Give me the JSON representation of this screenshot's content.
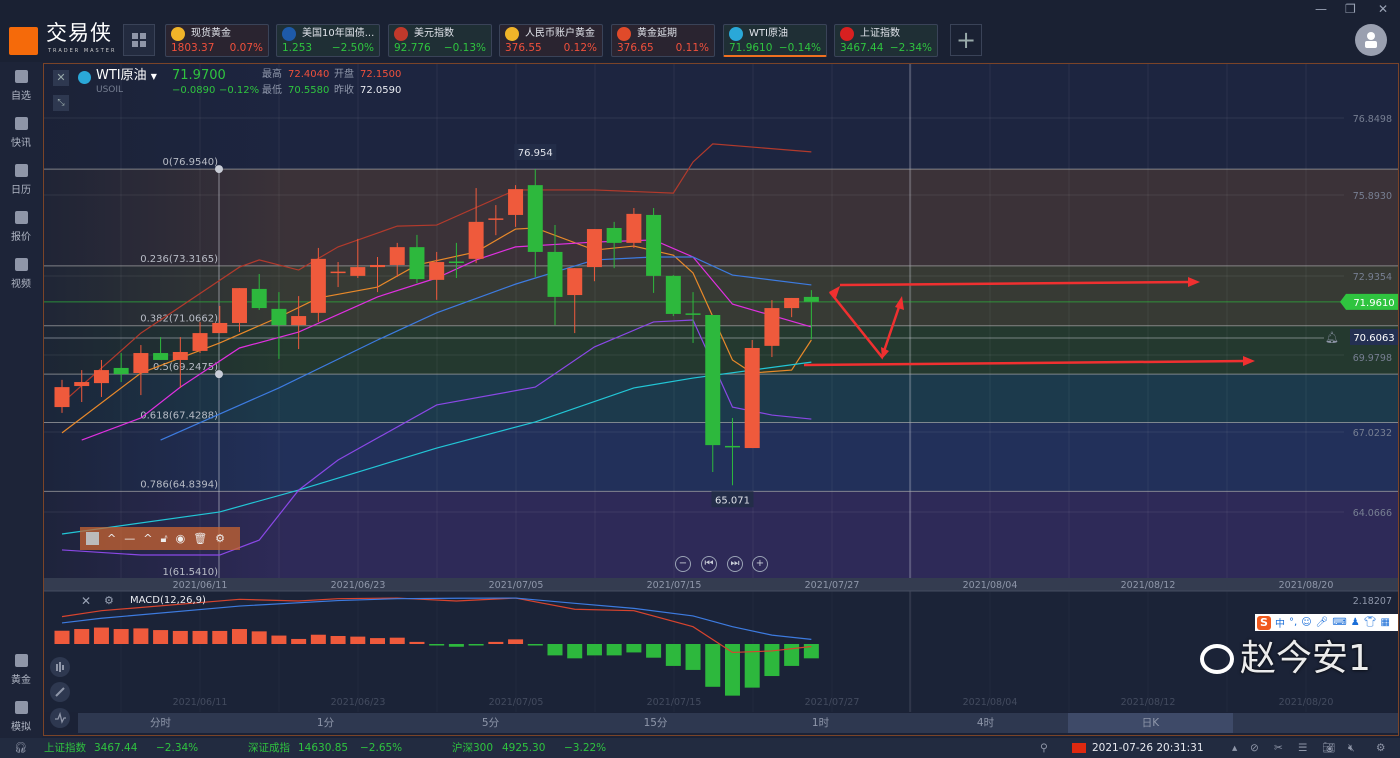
{
  "app": {
    "name": "交易侠",
    "subtitle": "TRADER MASTER"
  },
  "window_controls": [
    "minimize",
    "restore",
    "close"
  ],
  "tickers": [
    {
      "name": "现货黄金",
      "price": "1803.37",
      "change": "0.07%",
      "dir": "up",
      "icon": "gold-icon",
      "icon_color": "#f0b429"
    },
    {
      "name": "美国10年国债...",
      "price": "1.253",
      "change": "−2.50%",
      "dir": "dn",
      "icon": "bar-chart-icon",
      "icon_color": "#1e5aa8"
    },
    {
      "name": "美元指数",
      "price": "92.776",
      "change": "−0.13%",
      "dir": "dn",
      "icon": "us-flag-icon",
      "icon_color": "#c0392b"
    },
    {
      "name": "人民币账户黄金",
      "price": "376.55",
      "change": "0.12%",
      "dir": "up",
      "icon": "gold-icon",
      "icon_color": "#f0b429"
    },
    {
      "name": "黄金延期",
      "price": "376.65",
      "change": "0.11%",
      "dir": "up",
      "icon": "gold-td-icon",
      "icon_color": "#e04a2a"
    },
    {
      "name": "WTI原油",
      "price": "71.9610",
      "change": "−0.14%",
      "dir": "dn",
      "icon": "oil-icon",
      "icon_color": "#2aa8d8",
      "active": true
    },
    {
      "name": "上证指数",
      "price": "3467.44",
      "change": "−2.34%",
      "dir": "dn",
      "icon": "sse-icon",
      "icon_color": "#d82020"
    }
  ],
  "sidebar": {
    "items": [
      {
        "label": "自选",
        "icon": "bookmark-icon"
      },
      {
        "label": "快讯",
        "icon": "news-icon"
      },
      {
        "label": "日历",
        "icon": "calendar-icon"
      },
      {
        "label": "报价",
        "icon": "quote-icon"
      },
      {
        "label": "视频",
        "icon": "video-icon"
      }
    ],
    "bottom": [
      {
        "label": "黄金",
        "icon": "gold-bar-icon"
      },
      {
        "label": "模拟",
        "icon": "wallet-icon"
      }
    ]
  },
  "symbol": {
    "name": "WTI原油",
    "code": "USOIL",
    "price": "71.9700",
    "change": "−0.0890",
    "change_pct": "−0.12%",
    "high_label": "最高",
    "high": "72.4040",
    "open_label": "开盘",
    "open": "72.1500",
    "low_label": "最低",
    "low": "70.5580",
    "prev_label": "昨收",
    "prev": "72.0590"
  },
  "chart_data": {
    "type": "candlestick",
    "up_color": "#ef5a3c",
    "down_color": "#2db83d",
    "y_ticks": [
      "76.8498",
      "75.8930",
      "72.9354",
      "69.9798",
      "67.0232",
      "64.0666"
    ],
    "current_price": "71.9610",
    "alert_price": "70.6063",
    "x_ticks": [
      "2021/06/11",
      "2021/06/23",
      "2021/07/05",
      "2021/07/15",
      "2021/07/27",
      "2021/08/04",
      "2021/08/12",
      "2021/08/20"
    ],
    "high_marker": "76.954",
    "low_marker": "65.071",
    "fib_levels": [
      {
        "label": "0(76.9540)",
        "value": 76.954
      },
      {
        "label": "0.236(73.3165)",
        "value": 73.3165
      },
      {
        "label": "0.382(71.0662)",
        "value": 71.0662
      },
      {
        "label": "0.5(69.2475)",
        "value": 69.2475
      },
      {
        "label": "0.618(67.4288)",
        "value": 67.4288
      },
      {
        "label": "0.786(64.8394)",
        "value": 64.8394
      },
      {
        "label": "1(61.5410)",
        "value": 61.541
      }
    ],
    "candles": [
      [
        "2021/06/02",
        68.01,
        69.03,
        67.79,
        68.76
      ],
      [
        "2021/06/03",
        68.8,
        69.4,
        68.2,
        68.95
      ],
      [
        "2021/06/04",
        68.91,
        69.78,
        68.39,
        69.4
      ],
      [
        "2021/06/07",
        69.48,
        70.04,
        68.95,
        69.25
      ],
      [
        "2021/06/08",
        69.29,
        70.34,
        68.46,
        70.04
      ],
      [
        "2021/06/09",
        70.04,
        70.64,
        69.78,
        69.78
      ],
      [
        "2021/06/10",
        69.78,
        70.64,
        68.73,
        70.08
      ],
      [
        "2021/06/11",
        70.12,
        71.21,
        70.04,
        70.79
      ],
      [
        "2021/06/14",
        70.79,
        71.81,
        70.79,
        71.17
      ],
      [
        "2021/06/15",
        71.17,
        72.48,
        70.83,
        72.48
      ],
      [
        "2021/06/16",
        72.45,
        73.01,
        71.66,
        71.73
      ],
      [
        "2021/06/17",
        71.7,
        72.33,
        69.82,
        71.09
      ],
      [
        "2021/06/18",
        71.09,
        72.18,
        70.19,
        71.43
      ],
      [
        "2021/06/21",
        71.55,
        73.99,
        71.21,
        73.58
      ],
      [
        "2021/06/22",
        73.08,
        73.46,
        72.52,
        73.1
      ],
      [
        "2021/06/23",
        72.94,
        74.33,
        72.86,
        73.27
      ],
      [
        "2021/06/24",
        73.27,
        73.65,
        72.33,
        73.35
      ],
      [
        "2021/06/25",
        73.35,
        74.18,
        72.9,
        74.02
      ],
      [
        "2021/06/28",
        74.02,
        74.48,
        72.67,
        72.82
      ],
      [
        "2021/06/29",
        72.79,
        73.84,
        72.04,
        73.46
      ],
      [
        "2021/06/30",
        73.48,
        74.18,
        72.86,
        73.44
      ],
      [
        "2021/07/01",
        73.58,
        76.24,
        73.42,
        74.97
      ],
      [
        "2021/07/02",
        75.05,
        75.6,
        74.47,
        75.1
      ],
      [
        "2021/07/05",
        75.23,
        76.35,
        74.78,
        76.2
      ],
      [
        "2021/07/06",
        76.35,
        76.954,
        72.9,
        73.84
      ],
      [
        "2021/07/07",
        73.84,
        74.85,
        71.09,
        72.15
      ],
      [
        "2021/07/08",
        72.22,
        73.23,
        70.79,
        73.23
      ],
      [
        "2021/07/09",
        73.27,
        74.7,
        72.74,
        74.7
      ],
      [
        "2021/07/12",
        74.74,
        74.97,
        73.23,
        74.18
      ],
      [
        "2021/07/13",
        74.18,
        75.49,
        73.99,
        75.27
      ],
      [
        "2021/07/14",
        75.23,
        75.49,
        72.3,
        72.94
      ],
      [
        "2021/07/15",
        72.94,
        72.97,
        71.43,
        71.51
      ],
      [
        "2021/07/16",
        71.53,
        72.33,
        70.42,
        71.51
      ],
      [
        "2021/07/19",
        71.47,
        71.47,
        65.57,
        66.58
      ],
      [
        "2021/07/20",
        66.55,
        67.6,
        65.071,
        66.52
      ],
      [
        "2021/07/21",
        66.47,
        70.53,
        66.47,
        70.23
      ],
      [
        "2021/07/22",
        70.31,
        72.03,
        69.89,
        71.73
      ],
      [
        "2021/07/23",
        71.73,
        72.11,
        71.39,
        72.11
      ],
      [
        "2021/07/26",
        72.15,
        72.404,
        70.558,
        71.97
      ]
    ],
    "overlays": [
      {
        "color": "#b23a2c",
        "points": [
          [
            "2021/06/02",
            68.16
          ],
          [
            "2021/06/08",
            70.79
          ],
          [
            "2021/06/15",
            73.27
          ],
          [
            "2021/06/16",
            73.54
          ],
          [
            "2021/06/18",
            73.16
          ],
          [
            "2021/06/22",
            74.03
          ],
          [
            "2021/06/25",
            74.81
          ],
          [
            "2021/06/29",
            74.85
          ],
          [
            "2021/07/05",
            76.17
          ],
          [
            "2021/07/09",
            76.17
          ],
          [
            "2021/07/15",
            76.05
          ],
          [
            "2021/07/16",
            77.22
          ],
          [
            "2021/07/19",
            77.9
          ],
          [
            "2021/07/26",
            77.6
          ]
        ]
      },
      {
        "color": "#e8892a",
        "points": [
          [
            "2021/06/02",
            67.04
          ],
          [
            "2021/06/08",
            69.29
          ],
          [
            "2021/06/14",
            70.42
          ],
          [
            "2021/06/17",
            71.39
          ],
          [
            "2021/06/21",
            72.11
          ],
          [
            "2021/06/24",
            72.52
          ],
          [
            "2021/06/28",
            73.35
          ],
          [
            "2021/07/01",
            73.84
          ],
          [
            "2021/07/05",
            74.7
          ],
          [
            "2021/07/06",
            74.74
          ],
          [
            "2021/07/09",
            73.91
          ],
          [
            "2021/07/13",
            74.06
          ],
          [
            "2021/07/15",
            73.72
          ],
          [
            "2021/07/16",
            73.05
          ],
          [
            "2021/07/20",
            69.78
          ],
          [
            "2021/07/21",
            69.29
          ],
          [
            "2021/07/23",
            69.4
          ],
          [
            "2021/07/26",
            70.53
          ]
        ]
      },
      {
        "color": "#e030e0",
        "points": [
          [
            "2021/06/03",
            66.77
          ],
          [
            "2021/06/08",
            67.6
          ],
          [
            "2021/06/10",
            68.76
          ],
          [
            "2021/06/15",
            70.23
          ],
          [
            "2021/06/18",
            70.83
          ],
          [
            "2021/06/24",
            72.15
          ],
          [
            "2021/06/29",
            72.86
          ],
          [
            "2021/07/01",
            73.54
          ],
          [
            "2021/07/05",
            74.03
          ],
          [
            "2021/07/09",
            74.21
          ],
          [
            "2021/07/14",
            74.29
          ],
          [
            "2021/07/16",
            73.65
          ],
          [
            "2021/07/20",
            71.88
          ],
          [
            "2021/07/26",
            71.02
          ]
        ]
      },
      {
        "color": "#3d7be0",
        "points": [
          [
            "2021/06/09",
            66.77
          ],
          [
            "2021/06/17",
            68.73
          ],
          [
            "2021/06/24",
            70.53
          ],
          [
            "2021/06/29",
            71.55
          ],
          [
            "2021/07/05",
            72.63
          ],
          [
            "2021/07/09",
            73.54
          ],
          [
            "2021/07/14",
            73.65
          ],
          [
            "2021/07/16",
            73.65
          ],
          [
            "2021/07/20",
            72.97
          ],
          [
            "2021/07/26",
            72.6
          ]
        ]
      },
      {
        "color": "#22c6d6",
        "points": [
          [
            "2021/06/02",
            63.24
          ],
          [
            "2021/06/14",
            64.07
          ],
          [
            "2021/06/18",
            64.89
          ],
          [
            "2021/06/29",
            66.47
          ],
          [
            "2021/07/06",
            67.45
          ],
          [
            "2021/07/13",
            68.73
          ],
          [
            "2021/07/16",
            69.1
          ],
          [
            "2021/07/26",
            69.7
          ]
        ]
      },
      {
        "color": "#8a48e6",
        "points": [
          [
            "2021/06/02",
            62.64
          ],
          [
            "2021/06/08",
            62.45
          ],
          [
            "2021/06/14",
            62.45
          ],
          [
            "2021/06/16",
            63.01
          ],
          [
            "2021/06/18",
            64.89
          ],
          [
            "2021/06/22",
            66.02
          ],
          [
            "2021/06/29",
            68.09
          ],
          [
            "2021/07/06",
            68.76
          ],
          [
            "2021/07/09",
            70.27
          ],
          [
            "2021/07/14",
            71.21
          ],
          [
            "2021/07/16",
            71.28
          ],
          [
            "2021/07/20",
            68.01
          ],
          [
            "2021/07/22",
            67.71
          ],
          [
            "2021/07/26",
            67.56
          ]
        ]
      }
    ],
    "macd": {
      "label": "MACD(12,26,9)",
      "axis_label": "2.18207",
      "histogram": [
        0.63,
        0.71,
        0.78,
        0.71,
        0.74,
        0.66,
        0.62,
        0.62,
        0.62,
        0.71,
        0.6,
        0.4,
        0.24,
        0.44,
        0.38,
        0.35,
        0.28,
        0.3,
        0.1,
        -0.03,
        -0.13,
        -0.03,
        0.1,
        0.22,
        -0.03,
        -0.54,
        -0.68,
        -0.54,
        -0.54,
        -0.4,
        -0.65,
        -1.04,
        -1.23,
        -2.03,
        -2.45,
        -2.07,
        -1.52,
        -1.04,
        -0.68
      ],
      "lines": [
        {
          "color": "#d8442e",
          "points": [
            [
              "2021/06/02",
              1.3
            ],
            [
              "2021/06/04",
              1.58
            ],
            [
              "2021/06/15",
              2.12
            ],
            [
              "2021/06/18",
              2.04
            ],
            [
              "2021/06/22",
              2.15
            ],
            [
              "2021/06/25",
              2.18
            ],
            [
              "2021/06/30",
              2.04
            ],
            [
              "2021/07/05",
              2.18
            ],
            [
              "2021/07/08",
              1.65
            ],
            [
              "2021/07/13",
              1.58
            ],
            [
              "2021/07/16",
              0.82
            ],
            [
              "2021/07/20",
              -0.4
            ],
            [
              "2021/07/22",
              -0.33
            ],
            [
              "2021/07/26",
              -0.12
            ]
          ]
        },
        {
          "color": "#3d7be0",
          "points": [
            [
              "2021/06/02",
              1.0
            ],
            [
              "2021/06/04",
              1.22
            ],
            [
              "2021/06/15",
              1.8
            ],
            [
              "2021/06/22",
              2.06
            ],
            [
              "2021/06/25",
              2.15
            ],
            [
              "2021/06/30",
              2.17
            ],
            [
              "2021/07/05",
              2.18
            ],
            [
              "2021/07/08",
              1.93
            ],
            [
              "2021/07/13",
              1.69
            ],
            [
              "2021/07/16",
              1.33
            ],
            [
              "2021/07/20",
              0.82
            ],
            [
              "2021/07/22",
              0.42
            ],
            [
              "2021/07/26",
              0.22
            ]
          ]
        }
      ]
    }
  },
  "periods": [
    {
      "label": "分时"
    },
    {
      "label": "1分"
    },
    {
      "label": "5分"
    },
    {
      "label": "15分"
    },
    {
      "label": "1时"
    },
    {
      "label": "4时"
    },
    {
      "label": "日K",
      "active": true
    },
    {
      "label": ""
    }
  ],
  "status": [
    {
      "name": "上证指数",
      "value": "3467.44",
      "change": "−2.34%"
    },
    {
      "name": "深证成指",
      "value": "14630.85",
      "change": "−2.65%"
    },
    {
      "name": "沪深300",
      "value": "4925.30",
      "change": "−3.22%"
    }
  ],
  "datetime": "2021-07-26 20:31:31",
  "ime": {
    "lang": "中"
  },
  "watermark": "赵今安1"
}
